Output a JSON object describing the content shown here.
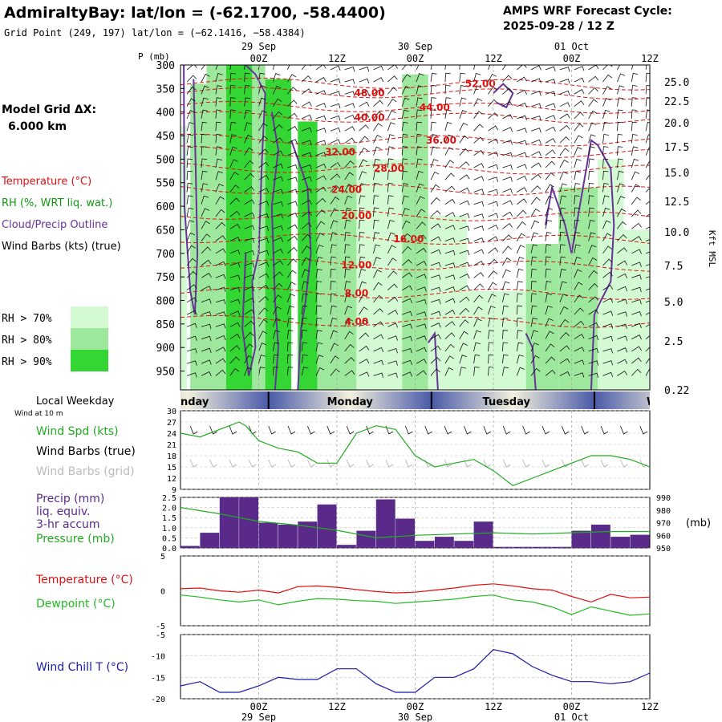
{
  "header": {
    "title": "AdmiraltyBay:  lat/lon = (-62.1700, -58.4400)",
    "subtitle": "Grid Point (249, 197) lat/lon = (−62.1416, −58.4384)",
    "cycle_title": "AMPS WRF Forecast Cycle:",
    "cycle_value": "2025-09-28 / 12  Z",
    "model_grid_label": "Model Grid ΔX:",
    "model_grid_value": "6.000 km"
  },
  "colors": {
    "temperature": "#dd1111",
    "rh": "#119911",
    "cloud": "#663399",
    "wind": "#111111",
    "precip": "#5a2a8a",
    "pressure": "#22aa22",
    "dewpoint": "#22bb22",
    "windchill": "#1a1aaa",
    "rh70": "#d4fad4",
    "rh80": "#9ee89e",
    "rh90": "#33d633"
  },
  "chart_data": [
    {
      "type": "heatmap",
      "name": "cross-section",
      "ylabel": "P (mb)",
      "y2label": "Kft MSL",
      "pressure_ticks": [
        300,
        350,
        400,
        450,
        500,
        550,
        600,
        650,
        700,
        750,
        800,
        850,
        900,
        950
      ],
      "height_ticks": [
        "25.0",
        "22.5",
        "20.0",
        "17.5",
        "15.0",
        "12.5",
        "10.0",
        "7.5",
        "5.0",
        "2.5",
        "0.22"
      ],
      "time_labels": [
        "00Z",
        "12Z",
        "00Z",
        "12Z",
        "00Z",
        "12Z"
      ],
      "time_hours": [
        12,
        24,
        36,
        48,
        60,
        72
      ],
      "date_labels": [
        {
          "label": "29 Sep",
          "hour": 12
        },
        {
          "label": "30 Sep",
          "hour": 36
        },
        {
          "label": "01 Oct",
          "hour": 60
        }
      ],
      "isotherm_labels": [
        {
          "label": "52.00",
          "hour": 46,
          "p": 340
        },
        {
          "label": "48.00",
          "hour": 29,
          "p": 360
        },
        {
          "label": "44.00",
          "hour": 39,
          "p": 390
        },
        {
          "label": "40.00",
          "hour": 29,
          "p": 412
        },
        {
          "label": "36.00",
          "hour": 40,
          "p": 460
        },
        {
          "label": "32.00",
          "hour": 24.5,
          "p": 485
        },
        {
          "label": "28.00",
          "hour": 32,
          "p": 520
        },
        {
          "label": "24.00",
          "hour": 25.5,
          "p": 565
        },
        {
          "label": "20.00",
          "hour": 27,
          "p": 620
        },
        {
          "label": "16.00",
          "hour": 35,
          "p": 670
        },
        {
          "label": "12.00",
          "hour": 27,
          "p": 725
        },
        {
          "label": "8.00",
          "hour": 27,
          "p": 785
        },
        {
          "label": "4.00",
          "hour": 27,
          "p": 845
        }
      ],
      "rh_bands": [
        {
          "start": 0,
          "end": 1,
          "top": 430,
          "level": 70
        },
        {
          "start": 1.5,
          "end": 4,
          "top": 340,
          "level": 80
        },
        {
          "start": 4,
          "end": 7,
          "top": 300,
          "level": 80
        },
        {
          "start": 7,
          "end": 11,
          "top": 300,
          "level": 90
        },
        {
          "start": 11,
          "end": 13,
          "top": 300,
          "level": 80
        },
        {
          "start": 13,
          "end": 17,
          "top": 330,
          "level": 90
        },
        {
          "start": 18,
          "end": 21,
          "top": 420,
          "level": 90
        },
        {
          "start": 21,
          "end": 27,
          "top": 470,
          "level": 80
        },
        {
          "start": 27,
          "end": 34,
          "top": 500,
          "level": 70
        },
        {
          "start": 34,
          "end": 38,
          "top": 320,
          "level": 80
        },
        {
          "start": 38,
          "end": 44,
          "top": 620,
          "level": 70
        },
        {
          "start": 44,
          "end": 53,
          "top": 780,
          "level": 70
        },
        {
          "start": 53,
          "end": 58,
          "top": 680,
          "level": 80
        },
        {
          "start": 58,
          "end": 64,
          "top": 560,
          "level": 80
        },
        {
          "start": 64,
          "end": 68,
          "top": 500,
          "level": 70
        },
        {
          "start": 68,
          "end": 72,
          "top": 650,
          "level": 70
        }
      ]
    },
    {
      "type": "line",
      "name": "wind-speed",
      "title": "Wind Spd (kts)",
      "ylim": [
        9,
        30
      ],
      "yticks": [
        9,
        12,
        15,
        18,
        21,
        24,
        27,
        30
      ],
      "x": [
        0,
        3,
        6,
        9,
        10,
        12,
        15,
        18,
        21,
        24,
        27,
        30,
        33,
        36,
        39,
        42,
        45,
        48,
        51,
        54,
        57,
        60,
        63,
        66,
        69,
        72
      ],
      "values": [
        24,
        23,
        25,
        27,
        26,
        22,
        20,
        19,
        16,
        16,
        24,
        26,
        25,
        18,
        15,
        16,
        17,
        14,
        10,
        12,
        14,
        16,
        18,
        18,
        17,
        15
      ]
    },
    {
      "type": "bar",
      "name": "precip-pressure",
      "title": "Precip (mm)",
      "ylim": [
        0,
        2.5
      ],
      "yticks": [
        "0.0",
        "0.5",
        "1.0",
        "1.5",
        "2.0",
        "2.5"
      ],
      "pressure_ylim": [
        950,
        990
      ],
      "pressure_ticks": [
        950,
        960,
        970,
        980,
        990
      ],
      "bar_hours": [
        1.5,
        4.5,
        7.5,
        10.5,
        13.5,
        16.5,
        19.5,
        22.5,
        25.5,
        28.5,
        31.5,
        34.5,
        37.5,
        40.5,
        43.5,
        46.5,
        49.5,
        52.5,
        55.5,
        58.5,
        61.5,
        64.5,
        67.5,
        70.5
      ],
      "values": [
        0.1,
        0.75,
        2.5,
        2.5,
        1.25,
        1.15,
        1.3,
        2.15,
        0.15,
        0.85,
        2.4,
        1.45,
        0.35,
        0.55,
        0.35,
        1.3,
        0.05,
        0.05,
        0.05,
        0.05,
        0.85,
        1.15,
        0.55,
        0.65
      ],
      "pressure_x": [
        0,
        6,
        12,
        18,
        24,
        30,
        36,
        42,
        48,
        54,
        60,
        66,
        72
      ],
      "pressure_values": [
        982,
        977,
        971,
        968,
        964,
        958,
        960,
        961,
        962,
        961,
        962,
        963,
        963
      ]
    },
    {
      "type": "line",
      "name": "temperature",
      "ylim": [
        -5,
        5
      ],
      "yticks": [
        "5",
        "0",
        "-5"
      ],
      "x": [
        0,
        3,
        6,
        9,
        12,
        15,
        18,
        21,
        24,
        27,
        30,
        33,
        36,
        39,
        42,
        45,
        48,
        51,
        54,
        57,
        60,
        63,
        66,
        69,
        72
      ],
      "series": [
        {
          "name": "Temperature (°C)",
          "values": [
            0.3,
            0.4,
            0.0,
            -0.2,
            0.1,
            -0.3,
            0.6,
            0.7,
            0.5,
            0.2,
            -0.1,
            -0.3,
            -0.2,
            0.1,
            0.4,
            0.8,
            1.0,
            0.7,
            0.3,
            0.1,
            -0.8,
            -1.6,
            -0.5,
            -1.0,
            -0.9
          ]
        },
        {
          "name": "Dewpoint (°C)",
          "values": [
            -0.6,
            -0.9,
            -1.3,
            -1.6,
            -1.3,
            -2.0,
            -1.5,
            -1.1,
            -1.2,
            -1.4,
            -1.5,
            -1.8,
            -1.6,
            -1.4,
            -1.2,
            -0.8,
            -0.6,
            -1.3,
            -1.6,
            -2.3,
            -3.4,
            -2.3,
            -2.9,
            -3.5,
            -3.3
          ]
        }
      ]
    },
    {
      "type": "line",
      "name": "wind-chill",
      "ylim": [
        -20,
        -5
      ],
      "yticks": [
        "-5",
        "-10",
        "-15",
        "-20"
      ],
      "x": [
        0,
        3,
        6,
        9,
        12,
        15,
        18,
        21,
        24,
        27,
        30,
        33,
        36,
        39,
        42,
        45,
        48,
        51,
        54,
        57,
        60,
        63,
        66,
        69,
        72
      ],
      "series": [
        {
          "name": "Wind Chill T (°C)",
          "values": [
            -17,
            -16,
            -18.5,
            -18.5,
            -17,
            -15,
            -15.5,
            -15.5,
            -13,
            -13,
            -16.5,
            -18.5,
            -18.5,
            -15,
            -15,
            -13,
            -8.5,
            -9.5,
            -12.5,
            -14.5,
            -16,
            -16,
            -16.5,
            -16,
            -14
          ]
        }
      ]
    }
  ],
  "weekday_bar": {
    "section_label": "Local Weekday",
    "days": [
      {
        "label": "nday",
        "hour": 0
      },
      {
        "label": "Monday",
        "hour": 26
      },
      {
        "label": "Tuesday",
        "hour": 50
      },
      {
        "label": "W",
        "hour": 71.5
      }
    ],
    "boundaries": [
      13.5,
      38.5,
      63.5
    ]
  },
  "labels": {
    "temperature": "Temperature (°C)",
    "rh": "RH (%, WRT liq. wat.)",
    "cloud": "Cloud/Precip Outline",
    "wind_barbs": "Wind Barbs (kts) (true)",
    "rh70": "RH > 70%",
    "rh80": "RH > 80%",
    "rh90": "RH > 90%",
    "wind_at_10m": "Wind at 10 m",
    "wind_spd": "Wind Spd (kts)",
    "wind_barbs_true": "Wind Barbs (true)",
    "wind_barbs_grid": "Wind Barbs (grid)",
    "precip_1": "Precip (mm)",
    "precip_2": "liq. equiv.",
    "precip_3": "3-hr accum",
    "pressure": "Pressure (mb)",
    "pressure_unit": "(mb)",
    "temp2": "Temperature (°C)",
    "dewpoint": "Dewpoint (°C)",
    "windchill": "Wind Chill T (°C)"
  },
  "bottom_axis": {
    "time_labels": [
      "00Z",
      "12Z",
      "00Z",
      "12Z",
      "00Z",
      "12Z"
    ],
    "date_labels": [
      "29 Sep",
      "30 Sep",
      "01 Oct"
    ]
  }
}
